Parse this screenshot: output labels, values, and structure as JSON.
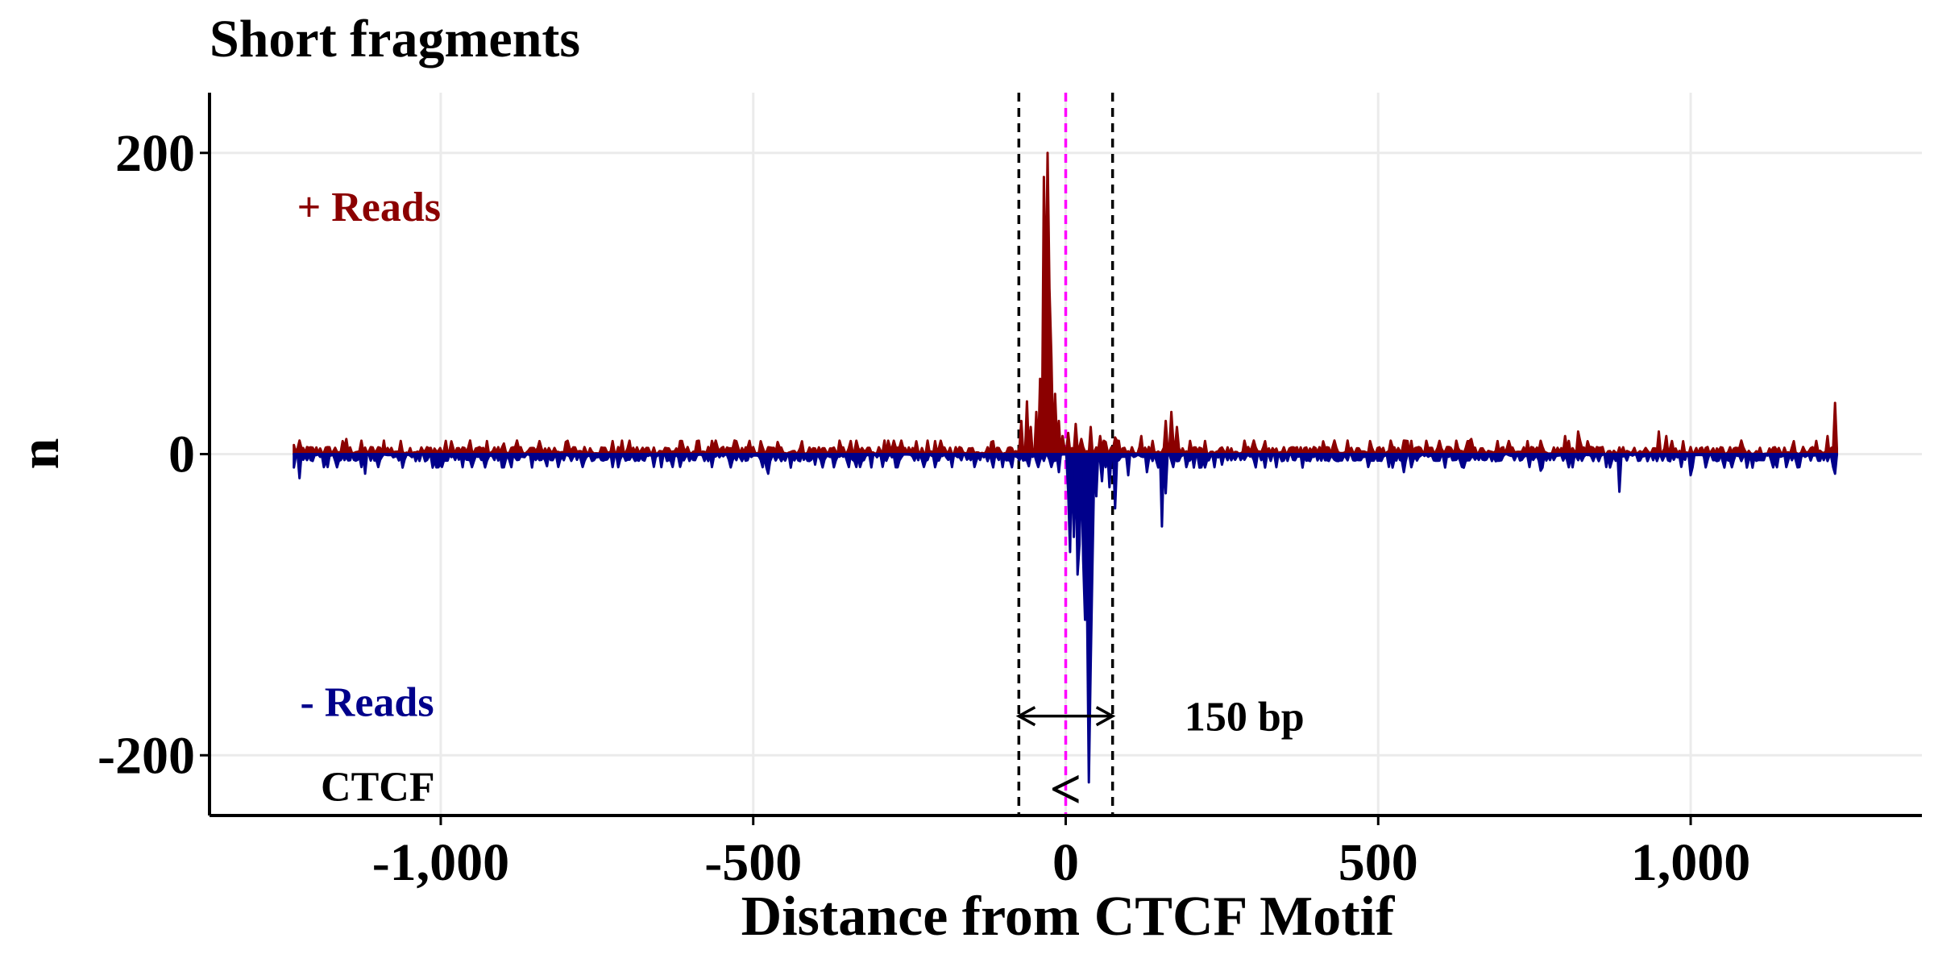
{
  "chart_data": {
    "type": "line",
    "title": "Short fragments",
    "xlabel": "Distance from CTCF Motif",
    "ylabel": "n",
    "xlim": [
      -1370,
      1370
    ],
    "ylim": [
      -240,
      240
    ],
    "x_ticks": [
      -1000,
      -500,
      0,
      500,
      1000
    ],
    "x_tick_labels": [
      "-1,000",
      "-500",
      "0",
      "500",
      "1,000"
    ],
    "y_ticks": [
      -200,
      0,
      200
    ],
    "y_tick_labels": [
      "-200",
      "0",
      "200"
    ],
    "grid": true,
    "x_range_data": [
      -1235,
      1235
    ],
    "series": [
      {
        "key": "plus",
        "color": "#8B0000",
        "peaks": [
          {
            "x": -1235,
            "y": 6
          },
          {
            "x": -1150,
            "y": 10
          },
          {
            "x": -1090,
            "y": 9
          },
          {
            "x": -900,
            "y": 7
          },
          {
            "x": -800,
            "y": 8
          },
          {
            "x": -530,
            "y": 9
          },
          {
            "x": -460,
            "y": 8
          },
          {
            "x": -290,
            "y": 9
          },
          {
            "x": -120,
            "y": 8
          },
          {
            "x": -70,
            "y": 22
          },
          {
            "x": -62,
            "y": 35
          },
          {
            "x": -55,
            "y": 18
          },
          {
            "x": -48,
            "y": 28
          },
          {
            "x": -42,
            "y": 50
          },
          {
            "x": -36,
            "y": 184
          },
          {
            "x": -33,
            "y": 95
          },
          {
            "x": -29,
            "y": 200
          },
          {
            "x": -26,
            "y": 110
          },
          {
            "x": -22,
            "y": 65
          },
          {
            "x": -18,
            "y": 40
          },
          {
            "x": -12,
            "y": 22
          },
          {
            "x": -6,
            "y": 12
          },
          {
            "x": 5,
            "y": 14
          },
          {
            "x": 15,
            "y": 20
          },
          {
            "x": 25,
            "y": 10
          },
          {
            "x": 40,
            "y": 18
          },
          {
            "x": 55,
            "y": 12
          },
          {
            "x": 65,
            "y": 8
          },
          {
            "x": 80,
            "y": 11
          },
          {
            "x": 120,
            "y": 12
          },
          {
            "x": 160,
            "y": 22
          },
          {
            "x": 170,
            "y": 28
          },
          {
            "x": 178,
            "y": 18
          },
          {
            "x": 300,
            "y": 9
          },
          {
            "x": 450,
            "y": 9
          },
          {
            "x": 650,
            "y": 10
          },
          {
            "x": 800,
            "y": 12
          },
          {
            "x": 820,
            "y": 15
          },
          {
            "x": 950,
            "y": 15
          },
          {
            "x": 960,
            "y": 12
          },
          {
            "x": 1080,
            "y": 9
          },
          {
            "x": 1220,
            "y": 12
          },
          {
            "x": 1232,
            "y": 34
          }
        ]
      },
      {
        "key": "minus",
        "color": "#00008B",
        "peaks": [
          {
            "x": -1225,
            "y": -16
          },
          {
            "x": -1120,
            "y": -13
          },
          {
            "x": -1060,
            "y": -9
          },
          {
            "x": -1000,
            "y": -7
          },
          {
            "x": -830,
            "y": -8
          },
          {
            "x": -475,
            "y": -13
          },
          {
            "x": -440,
            "y": -9
          },
          {
            "x": -400,
            "y": -7
          },
          {
            "x": -60,
            "y": -8
          },
          {
            "x": -10,
            "y": -12
          },
          {
            "x": 3,
            "y": -25
          },
          {
            "x": 8,
            "y": -65
          },
          {
            "x": 13,
            "y": -55
          },
          {
            "x": 18,
            "y": -80
          },
          {
            "x": 22,
            "y": -60
          },
          {
            "x": 27,
            "y": -70
          },
          {
            "x": 31,
            "y": -110
          },
          {
            "x": 34,
            "y": -95
          },
          {
            "x": 37,
            "y": -218
          },
          {
            "x": 40,
            "y": -140
          },
          {
            "x": 44,
            "y": -70
          },
          {
            "x": 50,
            "y": -28
          },
          {
            "x": 58,
            "y": -18
          },
          {
            "x": 70,
            "y": -22
          },
          {
            "x": 78,
            "y": -36
          },
          {
            "x": 100,
            "y": -14
          },
          {
            "x": 130,
            "y": -12
          },
          {
            "x": 155,
            "y": -48
          },
          {
            "x": 160,
            "y": -26
          },
          {
            "x": 250,
            "y": -7
          },
          {
            "x": 540,
            "y": -12
          },
          {
            "x": 760,
            "y": -11
          },
          {
            "x": 885,
            "y": -25
          },
          {
            "x": 1000,
            "y": -14
          },
          {
            "x": 1100,
            "y": -9
          },
          {
            "x": 1232,
            "y": -13
          }
        ]
      }
    ],
    "reference_lines": [
      {
        "x": -75,
        "style": "dashed",
        "color": "#000000"
      },
      {
        "x": 75,
        "style": "dashed",
        "color": "#000000"
      },
      {
        "x": 0,
        "style": "dashed",
        "color": "#FF00FF"
      }
    ],
    "annotations": {
      "plus_label": {
        "text": "+ Reads",
        "color": "#8B0000"
      },
      "minus_label": {
        "text": "- Reads",
        "color": "#00008B"
      },
      "motif_label": {
        "text": "CTCF",
        "color": "#000000"
      },
      "motif_glyph": "<",
      "span": {
        "from": -75,
        "to": 75,
        "y": -174,
        "text": "150 bp"
      }
    }
  }
}
